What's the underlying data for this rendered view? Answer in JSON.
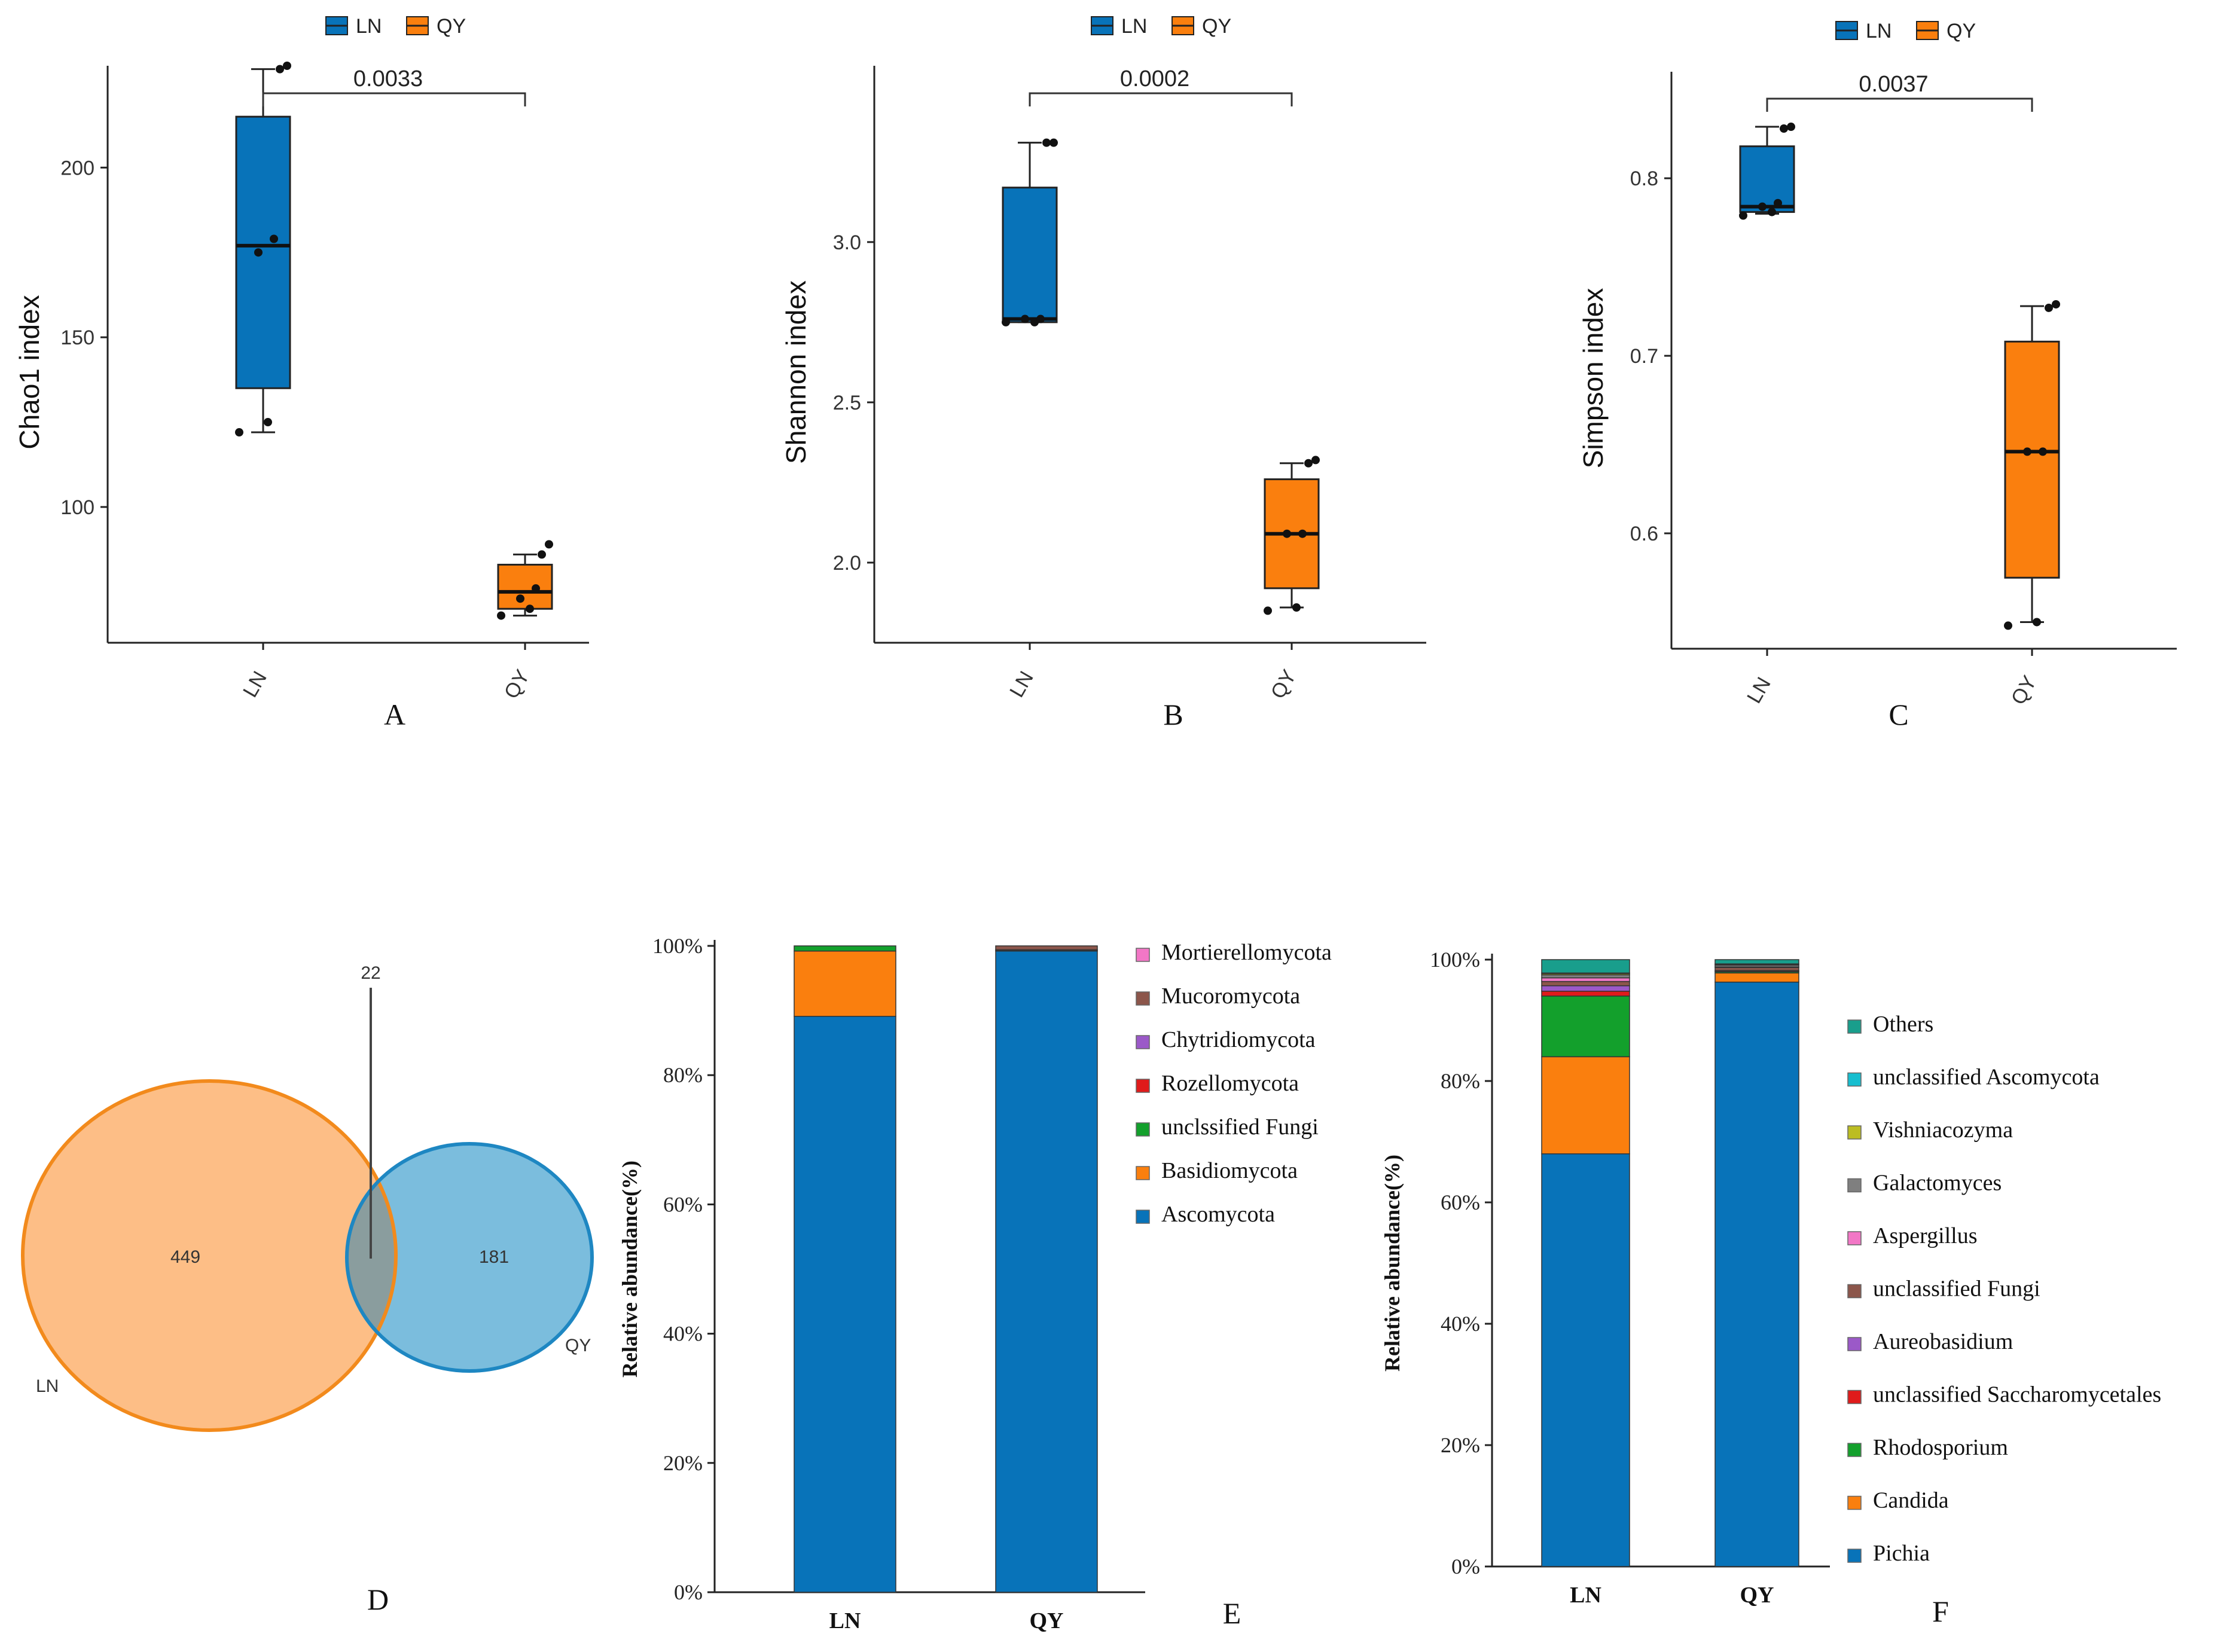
{
  "colors": {
    "ln": "#1F77B4",
    "ln_fill": "#0873B9",
    "qy": "#FF7F0E",
    "qy_fill": "#FA7F0E",
    "venn_ln_fill": "#FDBE86",
    "venn_ln_stroke": "#F28A1C",
    "venn_qy_fill": "#7BBDDD",
    "venn_qy_stroke": "#1E87C2",
    "venn_overlap": "#8A9D9E"
  },
  "chart_data": [
    {
      "id": "A",
      "type": "box",
      "panel_label": "A",
      "ylabel": "Chao1 index",
      "ylim": [
        60,
        230
      ],
      "yticks": [
        100,
        150,
        200
      ],
      "categories": [
        "LN",
        "QY"
      ],
      "legend": [
        "LN",
        "QY"
      ],
      "pvalue": "0.0033",
      "boxes": [
        {
          "group": "LN",
          "whisker_low": 122,
          "q1": 135,
          "median": 177,
          "q3": 215,
          "whisker_high": 229,
          "points": [
            122,
            125,
            175,
            179,
            229,
            230
          ]
        },
        {
          "group": "QY",
          "whisker_low": 68,
          "q1": 70,
          "median": 75,
          "q3": 83,
          "whisker_high": 86,
          "points": [
            68,
            70,
            73,
            76,
            86,
            89
          ]
        }
      ]
    },
    {
      "id": "B",
      "type": "box",
      "panel_label": "B",
      "ylabel": "Shannon index",
      "ylim": [
        1.75,
        3.55
      ],
      "yticks": [
        2.0,
        2.5,
        3.0
      ],
      "categories": [
        "LN",
        "QY"
      ],
      "legend": [
        "LN",
        "QY"
      ],
      "pvalue": "0.0002",
      "boxes": [
        {
          "group": "LN",
          "whisker_low": 2.75,
          "q1": 2.75,
          "median": 2.76,
          "q3": 3.17,
          "whisker_high": 3.31,
          "points": [
            2.75,
            2.75,
            2.76,
            2.76,
            3.31,
            3.31
          ]
        },
        {
          "group": "QY",
          "whisker_low": 1.86,
          "q1": 1.92,
          "median": 2.09,
          "q3": 2.26,
          "whisker_high": 2.31,
          "points": [
            1.85,
            1.86,
            2.09,
            2.09,
            2.31,
            2.32
          ]
        }
      ]
    },
    {
      "id": "C",
      "type": "box",
      "panel_label": "C",
      "ylabel": "Simpson index",
      "ylim": [
        0.535,
        0.86
      ],
      "yticks": [
        0.6,
        0.7,
        0.8
      ],
      "categories": [
        "LN",
        "QY"
      ],
      "legend": [
        "LN",
        "QY"
      ],
      "pvalue": "0.0037",
      "boxes": [
        {
          "group": "LN",
          "whisker_low": 0.78,
          "q1": 0.781,
          "median": 0.784,
          "q3": 0.818,
          "whisker_high": 0.829,
          "points": [
            0.779,
            0.781,
            0.784,
            0.786,
            0.828,
            0.829
          ]
        },
        {
          "group": "QY",
          "whisker_low": 0.55,
          "q1": 0.575,
          "median": 0.646,
          "q3": 0.708,
          "whisker_high": 0.728,
          "points": [
            0.548,
            0.55,
            0.646,
            0.646,
            0.727,
            0.729
          ]
        }
      ]
    },
    {
      "id": "D",
      "type": "venn",
      "panel_label": "D",
      "sets": [
        {
          "name": "LN",
          "unique": "449"
        },
        {
          "name": "QY",
          "unique": "181"
        }
      ],
      "intersection": "22"
    },
    {
      "id": "E",
      "type": "stacked_bar",
      "panel_label": "E",
      "ylabel": "Relative abundance(%)",
      "ylim": [
        0,
        100
      ],
      "yticks": [
        "0%",
        "20%",
        "40%",
        "60%",
        "80%",
        "100%"
      ],
      "categories": [
        "LN",
        "QY"
      ],
      "series": [
        {
          "name": "Ascomycota",
          "color": "#0873B9",
          "values": [
            89.1,
            99.2
          ]
        },
        {
          "name": "Basidiomycota",
          "color": "#FA7F0E",
          "values": [
            10.1,
            0.1
          ]
        },
        {
          "name": "unclssified Fungi",
          "color": "#13A02C",
          "values": [
            0.8,
            0.1
          ]
        },
        {
          "name": "Rozellomycota",
          "color": "#E01B1B",
          "values": [
            0.0,
            0.0
          ]
        },
        {
          "name": "Chytridiomycota",
          "color": "#9B59C8",
          "values": [
            0.0,
            0.0
          ]
        },
        {
          "name": "Mucoromycota",
          "color": "#8C564B",
          "values": [
            0.0,
            0.6
          ]
        },
        {
          "name": "Mortierellomycota",
          "color": "#F277C6",
          "values": [
            0.0,
            0.0
          ]
        }
      ]
    },
    {
      "id": "F",
      "type": "stacked_bar",
      "panel_label": "F",
      "ylabel": "Relative abundance(%)",
      "ylim": [
        0,
        100
      ],
      "yticks": [
        "0%",
        "20%",
        "40%",
        "60%",
        "80%",
        "100%"
      ],
      "categories": [
        "LN",
        "QY"
      ],
      "series": [
        {
          "name": "Pichia",
          "color": "#0873B9",
          "values": [
            68.0,
            96.3
          ]
        },
        {
          "name": "Candida",
          "color": "#FA7F0E",
          "values": [
            16.0,
            1.5
          ]
        },
        {
          "name": "Rhodosporium",
          "color": "#13A02C",
          "values": [
            10.0,
            0.2
          ]
        },
        {
          "name": "unclassified Saccharomycetales",
          "color": "#E01B1B",
          "values": [
            0.8,
            0.1
          ]
        },
        {
          "name": "Aureobasidium",
          "color": "#9B59C8",
          "values": [
            0.9,
            0.1
          ]
        },
        {
          "name": "unclassified Fungi",
          "color": "#8C564B",
          "values": [
            0.7,
            0.5
          ]
        },
        {
          "name": "Aspergillus",
          "color": "#F277C6",
          "values": [
            0.6,
            0.1
          ]
        },
        {
          "name": "Galactomyces",
          "color": "#7F7F7F",
          "values": [
            0.5,
            0.3
          ]
        },
        {
          "name": "Vishniacozyma",
          "color": "#BCBD22",
          "values": [
            0.2,
            0.1
          ]
        },
        {
          "name": "unclassified Ascomycota",
          "color": "#17BECF",
          "values": [
            0.1,
            0.1
          ]
        },
        {
          "name": "Others",
          "color": "#199E8C",
          "values": [
            2.2,
            0.7
          ]
        }
      ]
    }
  ]
}
